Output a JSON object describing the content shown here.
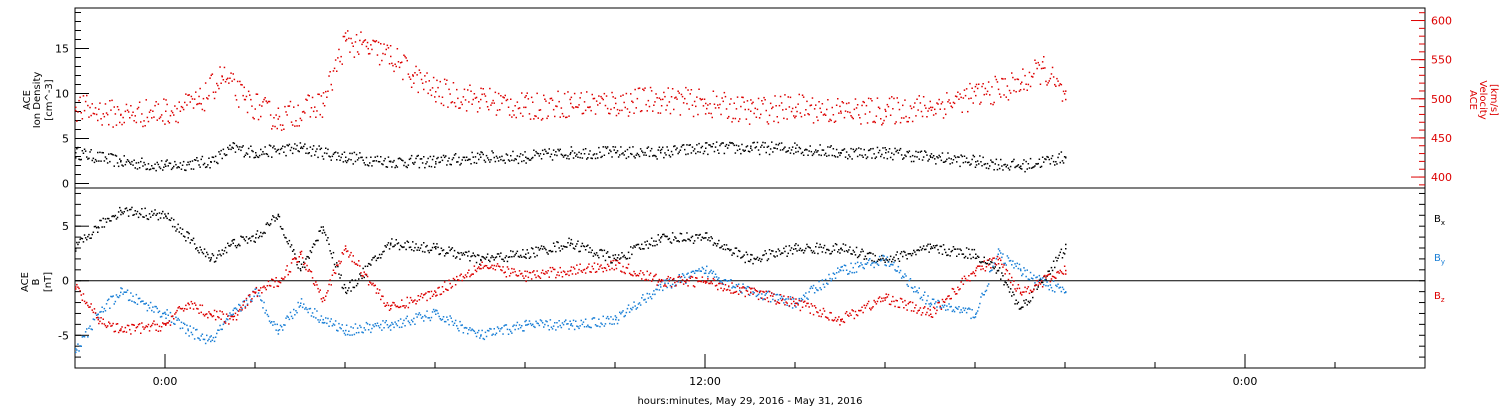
{
  "chart_data": [
    {
      "type": "scatter",
      "panel": "top",
      "ylabel_left": [
        "ACE",
        "Ion Density",
        "[cm^-3]"
      ],
      "ylabel_right": [
        "ACE",
        "Velocity",
        "[km/s]"
      ],
      "ylim_left": [
        -0.5,
        19.5
      ],
      "ylim_right": [
        386,
        616
      ],
      "yticks_left": [
        "0",
        "5",
        "10",
        "15"
      ],
      "yticks_right": [
        "400",
        "450",
        "500",
        "550",
        "600"
      ],
      "series": [
        {
          "axis": "left",
          "color": "#000000",
          "x": [
            -2.0,
            -1.0,
            0.0,
            1.0,
            1.5,
            2.0,
            3.0,
            4.0,
            5.0,
            6.0,
            7.0,
            8.0,
            9.0,
            10.0,
            11.0,
            12.0,
            13.0,
            14.0,
            15.0,
            16.0,
            17.0,
            18.0,
            19.0,
            20.0
          ],
          "y": [
            3.5,
            2.5,
            2.0,
            2.5,
            4.0,
            3.5,
            4.0,
            3.0,
            2.5,
            2.5,
            3.0,
            3.0,
            3.5,
            3.5,
            3.5,
            4.0,
            4.0,
            4.0,
            3.5,
            3.5,
            3.0,
            2.5,
            2.0,
            3.0
          ]
        },
        {
          "axis": "right",
          "color": "#dd0000",
          "x": [
            -2.0,
            -1.0,
            0.0,
            0.75,
            1.25,
            1.75,
            2.5,
            3.5,
            4.0,
            4.5,
            5.0,
            5.5,
            6.0,
            7.0,
            8.0,
            9.0,
            10.0,
            11.0,
            12.0,
            13.0,
            14.0,
            15.0,
            16.0,
            17.0,
            18.0,
            19.0,
            19.5,
            20.0
          ],
          "y": [
            490,
            480,
            485,
            495,
            530,
            500,
            475,
            495,
            575,
            565,
            555,
            530,
            510,
            500,
            490,
            495,
            495,
            500,
            495,
            485,
            490,
            485,
            485,
            490,
            505,
            520,
            540,
            500
          ]
        }
      ]
    },
    {
      "type": "scatter",
      "panel": "bottom",
      "xlabel": "hours:minutes, May 29, 2016 - May 31, 2016",
      "ylabel": [
        "ACE",
        "B",
        "[nT]"
      ],
      "ylim": [
        -8,
        8.5
      ],
      "xlim": [
        -2,
        28
      ],
      "yticks": [
        "-5",
        "0",
        "5"
      ],
      "xticks": [
        {
          "x": 0,
          "label": "0:00"
        },
        {
          "x": 12,
          "label": "12:00"
        },
        {
          "x": 24,
          "label": "0:00"
        }
      ],
      "series": [
        {
          "name": "Bx",
          "color": "#000000",
          "x": [
            -2.0,
            -1.5,
            -1.0,
            0.0,
            0.5,
            1.0,
            1.5,
            2.0,
            2.5,
            3.0,
            3.5,
            4.0,
            5.0,
            6.0,
            7.0,
            8.0,
            9.0,
            10.0,
            11.0,
            12.0,
            13.0,
            14.0,
            15.0,
            16.0,
            17.0,
            18.0,
            18.5,
            19.0,
            20.0
          ],
          "y": [
            3.0,
            5.0,
            6.5,
            6.0,
            4.0,
            2.0,
            3.5,
            4.0,
            6.0,
            1.0,
            5.0,
            -1.0,
            3.5,
            3.0,
            2.0,
            2.5,
            3.5,
            2.0,
            4.0,
            4.0,
            2.0,
            3.0,
            3.0,
            2.0,
            3.0,
            2.5,
            1.0,
            -2.5,
            3.0
          ]
        },
        {
          "name": "By",
          "color": "#1a7fd6",
          "x": [
            -2.0,
            -1.5,
            -1.0,
            0.0,
            0.5,
            1.0,
            1.5,
            2.0,
            2.5,
            3.0,
            3.5,
            4.0,
            5.0,
            6.0,
            7.0,
            8.0,
            9.0,
            10.0,
            11.0,
            12.0,
            13.0,
            14.0,
            15.0,
            16.0,
            17.0,
            18.0,
            18.5,
            19.0,
            20.0
          ],
          "y": [
            -6.5,
            -3.0,
            -1.0,
            -3.0,
            -4.5,
            -5.5,
            -3.0,
            -1.0,
            -4.5,
            -2.0,
            -3.5,
            -4.5,
            -4.0,
            -3.0,
            -5.0,
            -4.0,
            -4.0,
            -3.5,
            -0.5,
            1.0,
            -1.0,
            -2.0,
            1.0,
            2.0,
            -2.0,
            -3.0,
            2.5,
            1.0,
            -1.0
          ]
        },
        {
          "name": "Bz",
          "color": "#dd0000",
          "x": [
            -2.0,
            -1.5,
            -1.0,
            0.0,
            0.5,
            1.0,
            1.5,
            2.0,
            2.5,
            3.0,
            3.5,
            4.0,
            5.0,
            6.0,
            7.0,
            8.0,
            9.0,
            10.0,
            11.0,
            12.0,
            13.0,
            14.0,
            15.0,
            16.0,
            17.0,
            18.0,
            18.5,
            19.0,
            20.0
          ],
          "y": [
            -0.5,
            -3.5,
            -4.5,
            -4.0,
            -2.0,
            -3.0,
            -3.5,
            -1.0,
            0.0,
            2.5,
            -1.5,
            3.0,
            -2.5,
            -1.0,
            1.5,
            0.5,
            1.0,
            1.5,
            0.0,
            0.0,
            -1.0,
            -2.0,
            -3.5,
            -1.5,
            -3.0,
            1.0,
            2.0,
            -1.0,
            1.0
          ]
        }
      ],
      "legend": {
        "placement": "right",
        "entries": [
          {
            "letter": "B",
            "sub": "x",
            "color": "#000000"
          },
          {
            "letter": "B",
            "sub": "y",
            "color": "#1a7fd6"
          },
          {
            "letter": "B",
            "sub": "z",
            "color": "#dd0000"
          }
        ]
      }
    }
  ]
}
